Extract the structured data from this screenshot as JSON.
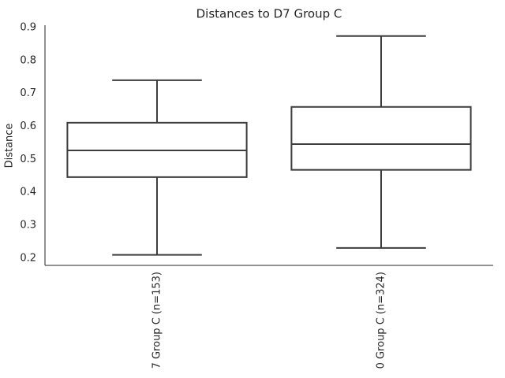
{
  "chart_data": {
    "type": "box",
    "title": "Distances to D7 Group C",
    "y_label": "Distance",
    "categories": [
      "7 Group C (n=153)",
      "0 Group C (n=324)"
    ],
    "boxes": [
      {
        "whislo": 0.21,
        "q1": 0.446,
        "med": 0.527,
        "q3": 0.611,
        "whishi": 0.74
      },
      {
        "whislo": 0.231,
        "q1": 0.468,
        "med": 0.546,
        "q3": 0.659,
        "whishi": 0.874
      }
    ],
    "color": "#3d3d3d",
    "ylim": [
      0.178,
      0.907
    ],
    "yticks": [
      0.2,
      0.3,
      0.4,
      0.5,
      0.6,
      0.7,
      0.8,
      0.9
    ],
    "grid": false
  }
}
